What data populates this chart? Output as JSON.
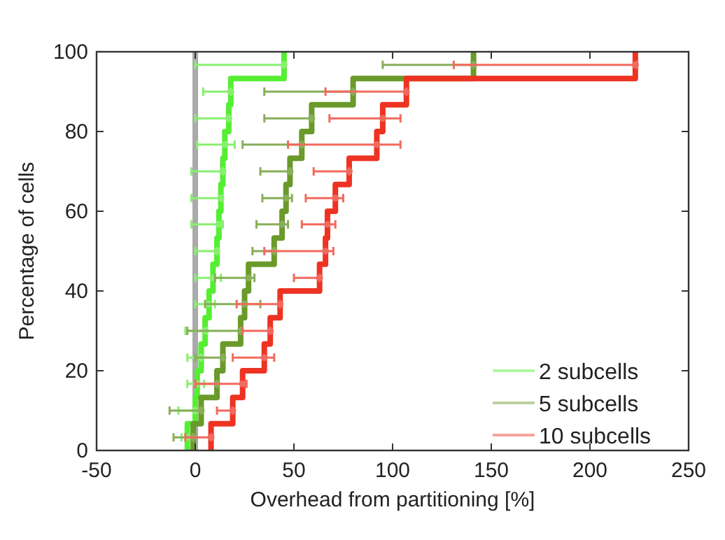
{
  "chart_data": {
    "type": "step",
    "xlabel": "Overhead from partitioning [%]",
    "ylabel": "Percentage of cells",
    "xlim": [
      -50,
      250
    ],
    "xticks": [
      -50,
      0,
      50,
      100,
      150,
      200,
      250
    ],
    "ylim": [
      0,
      100
    ],
    "yticks": [
      0,
      20,
      40,
      60,
      80,
      100
    ],
    "legend": "bottom right",
    "ref_lines": [
      {
        "axis": "x",
        "value": 0,
        "color": "#aaaaaa"
      }
    ],
    "series": [
      {
        "name": "2 subcells",
        "color": "#55ee33",
        "x": [
          -4,
          -4,
          0,
          1,
          3,
          5,
          7,
          9,
          11,
          12,
          13,
          14,
          15,
          17,
          18,
          45
        ],
        "values": [
          0,
          6.7,
          13.3,
          20,
          26.7,
          33.3,
          40,
          46.7,
          53.3,
          60,
          66.7,
          73.3,
          80,
          86.7,
          93.3,
          100
        ]
      },
      {
        "name": "5 subcells",
        "color": "#6a9a2a",
        "x": [
          -1,
          -1,
          3,
          11,
          14,
          23,
          25,
          27,
          40,
          44,
          46,
          48,
          54,
          59,
          80,
          141
        ],
        "values": [
          0,
          6.7,
          13.3,
          20,
          26.7,
          33.3,
          40,
          46.7,
          53.3,
          60,
          66.7,
          73.3,
          80,
          86.7,
          93.3,
          100
        ]
      },
      {
        "name": "10 subcells",
        "color": "#ee3322",
        "x": [
          8,
          8,
          19,
          24,
          35,
          38,
          43,
          63,
          66,
          67,
          71,
          78,
          92,
          95,
          107,
          223
        ],
        "values": [
          0,
          6.7,
          13.3,
          20,
          26.7,
          33.3,
          40,
          46.7,
          53.3,
          60,
          66.7,
          73.3,
          80,
          86.7,
          93.3,
          100
        ]
      },
      {
        "color": "#88f070",
        "type": "scatter",
        "x": [
          -4,
          0,
          1,
          3,
          5,
          7,
          9,
          11,
          12,
          13,
          14,
          15,
          17,
          18,
          45
        ],
        "values": [
          3.3,
          10,
          16.7,
          23.3,
          30,
          36.7,
          43.3,
          50,
          56.7,
          63.3,
          70,
          76.7,
          83.3,
          90,
          96.7
        ],
        "xerrors": [
          [
            -7,
            -1
          ],
          [
            -8.5,
            0
          ],
          [
            -4,
            4.5
          ],
          [
            -4,
            3
          ],
          [
            -5,
            6
          ],
          [
            0,
            10
          ],
          [
            0,
            13
          ],
          [
            0,
            11
          ],
          [
            -2,
            14
          ],
          [
            -2,
            14
          ],
          [
            -2,
            14
          ],
          [
            1,
            20
          ],
          [
            0,
            17
          ],
          [
            4,
            18
          ],
          [
            0,
            45
          ]
        ]
      },
      {
        "color": "#88ae58",
        "type": "scatter",
        "x": [
          -1,
          3,
          11,
          14,
          23,
          25,
          27,
          40,
          44,
          46,
          48,
          54,
          59,
          80,
          141
        ],
        "values": [
          3.3,
          10,
          16.7,
          23.3,
          30,
          36.7,
          43.3,
          50,
          56.7,
          63.3,
          70,
          76.7,
          83.3,
          90,
          96.7
        ],
        "xerrors": [
          [
            -11,
            -1
          ],
          [
            -13,
            3
          ],
          [
            0,
            11
          ],
          [
            0,
            14
          ],
          [
            -4,
            23
          ],
          [
            5,
            33
          ],
          [
            10,
            30
          ],
          [
            29,
            40
          ],
          [
            31,
            47
          ],
          [
            34,
            49
          ],
          [
            33,
            48
          ],
          [
            24,
            54
          ],
          [
            35,
            59
          ],
          [
            35,
            80
          ],
          [
            95,
            141
          ]
        ]
      },
      {
        "color": "#f26a5e",
        "type": "scatter",
        "x": [
          8,
          19,
          24,
          35,
          38,
          43,
          63,
          66,
          67,
          71,
          78,
          92,
          95,
          107,
          223
        ],
        "values": [
          3.3,
          10,
          16.7,
          23.3,
          30,
          36.7,
          43.3,
          50,
          56.7,
          63.3,
          70,
          76.7,
          83.3,
          90,
          96.7
        ],
        "xerrors": [
          [
            -5,
            8
          ],
          [
            11,
            19
          ],
          [
            0,
            26
          ],
          [
            19,
            40
          ],
          [
            24,
            38
          ],
          [
            21,
            43
          ],
          [
            50,
            63
          ],
          [
            35,
            70
          ],
          [
            54,
            71
          ],
          [
            56,
            75
          ],
          [
            60,
            78
          ],
          [
            47,
            104
          ],
          [
            68,
            104
          ],
          [
            66,
            107
          ],
          [
            131,
            224
          ]
        ]
      }
    ]
  }
}
